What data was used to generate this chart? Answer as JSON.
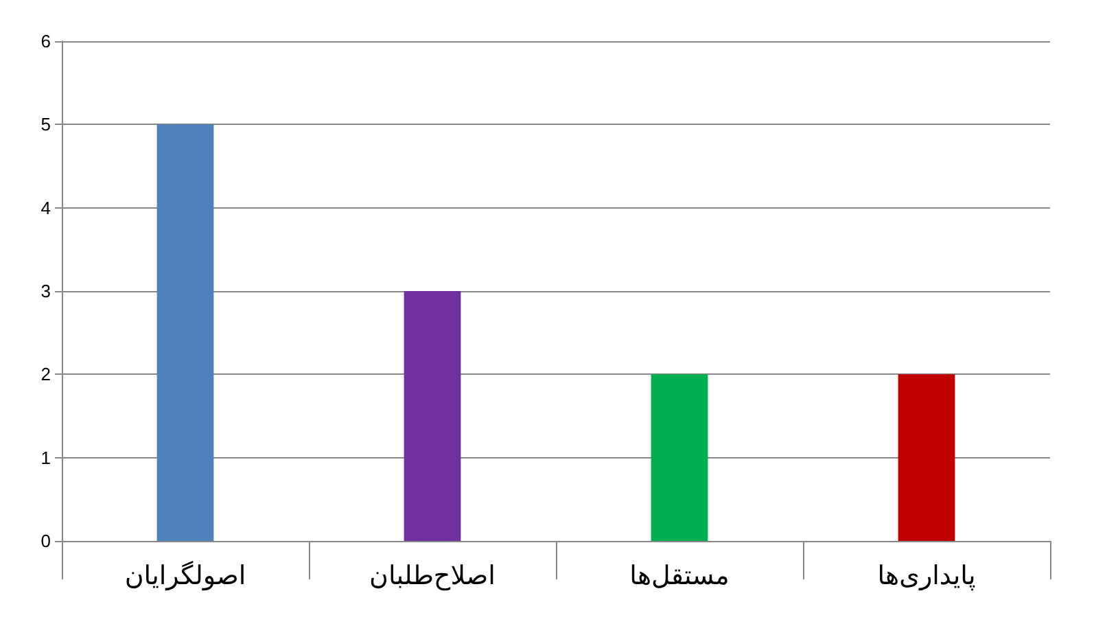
{
  "chart_data": {
    "type": "bar",
    "categories": [
      "اصولگرایان",
      "اصلاح‌طلبان",
      "مستقل‌ها",
      "پایداری‌ها"
    ],
    "values": [
      5,
      3,
      2,
      2
    ],
    "colors": [
      "#4f81bd",
      "#7030a0",
      "#00b050",
      "#c00000"
    ],
    "ylim": [
      0,
      6
    ],
    "yticks": [
      0,
      1,
      2,
      3,
      4,
      5,
      6
    ],
    "grid": "y"
  }
}
